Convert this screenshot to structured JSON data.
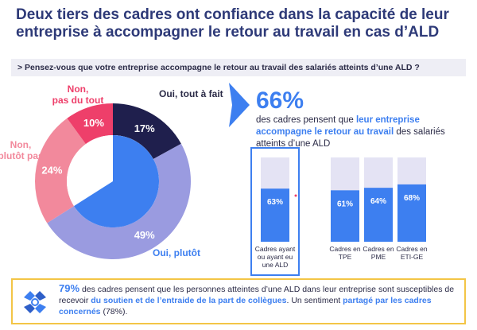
{
  "title": "Deux tiers des cadres ont confiance dans la capacité de leur entreprise à accompagner le retour au travail en cas d’ALD",
  "question": "> Pensez-vous que votre entreprise accompagne le retour au travail des salariés atteints d’une ALD ?",
  "headline": {
    "pct": "66%",
    "desc_pre": "des cadres pensent que ",
    "desc_hl": "leur entreprise accompagne le retour au travail",
    "desc_post": " des salariés atteints d’une ALD"
  },
  "colors": {
    "dark_navy": "#1f1f4d",
    "blue": "#3d7ff0",
    "lavender": "#9a9be0",
    "pink": "#f2899c",
    "red": "#ee3f6a",
    "bar_bg": "#e4e3f4",
    "yellow": "#f3c546"
  },
  "chart_data": [
    {
      "type": "pie",
      "categories": [
        "Oui, tout à fait",
        "Oui, plutôt",
        "Non, plutôt pas",
        "Non, pas du tout"
      ],
      "values": [
        17,
        49,
        24,
        10
      ],
      "value_labels": [
        "17%",
        "49%",
        "24%",
        "10%"
      ],
      "label_lines": [
        [
          "Oui, tout à fait"
        ],
        [
          "Oui, plutôt"
        ],
        [
          "Non,",
          "plutôt pas"
        ],
        [
          "Non,",
          "pas du tout"
        ]
      ],
      "colors": [
        "#1f1f4d",
        "#9a9be0",
        "#f2899c",
        "#ee3f6a"
      ]
    },
    {
      "type": "bar",
      "categories": [
        "Cadres ayant ou ayant eu une ALD",
        "Cadres en TPE",
        "Cadres en PME",
        "Cadres en ETI-GE"
      ],
      "category_lines": [
        [
          "Cadres ayant",
          "ou ayant eu",
          "une ALD"
        ],
        [
          "Cadres en",
          "TPE"
        ],
        [
          "Cadres en",
          "PME"
        ],
        [
          "Cadres en",
          "ETI-GE"
        ]
      ],
      "values": [
        63,
        61,
        64,
        68
      ],
      "value_labels": [
        "63%",
        "61%",
        "64%",
        "68%"
      ],
      "ylim": [
        0,
        100
      ]
    }
  ],
  "bottom": {
    "pct": "79%",
    "t1": " des cadres pensent que les personnes atteintes d’une ALD dans leur entreprise sont susceptibles de recevoir ",
    "hl1": "du soutien et de l’entraide de la part de collègues",
    "t2": ". Un sentiment ",
    "hl2": "partagé par les cadres concernés",
    "t3": " (78%)."
  }
}
